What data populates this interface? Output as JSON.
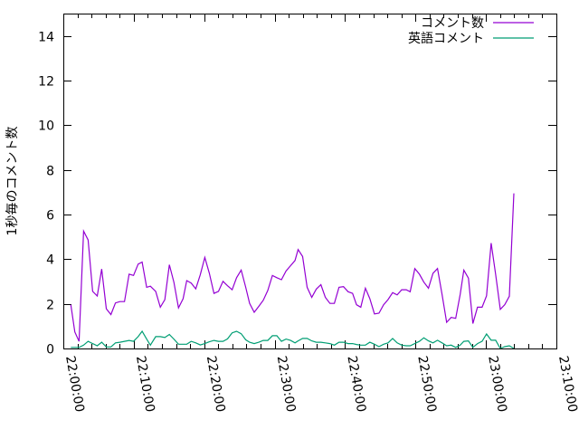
{
  "chart_data": {
    "type": "line",
    "title": "",
    "xlabel": "",
    "ylabel": "1秒毎のコメント数",
    "xlim": [
      "22:00:00",
      "23:10:00"
    ],
    "ylim": [
      0,
      15
    ],
    "yticks": [
      "0",
      "2",
      "4",
      "6",
      "8",
      "10",
      "12",
      "14"
    ],
    "xticks": [
      "22:00:00",
      "22:10:00",
      "22:20:00",
      "22:30:00",
      "22:40:00",
      "22:50:00",
      "23:00:00",
      "23:10:00"
    ],
    "grid": false,
    "legend_position": "top-right",
    "x": [
      "22:01:04",
      "22:01:38",
      "22:02:14",
      "22:02:53",
      "22:03:31",
      "22:04:10",
      "22:04:49",
      "22:05:27",
      "22:06:06",
      "22:06:45",
      "22:07:24",
      "22:08:02",
      "22:08:41",
      "22:09:20",
      "22:09:58",
      "22:10:37",
      "22:11:11",
      "22:11:50",
      "22:12:21",
      "22:13:07",
      "22:13:46",
      "22:14:25",
      "22:15:03",
      "22:15:42",
      "22:16:21",
      "22:17:00",
      "22:17:31",
      "22:18:09",
      "22:18:48",
      "22:19:27",
      "22:20:05",
      "22:20:44",
      "22:21:23",
      "22:22:02",
      "22:22:40",
      "22:23:19",
      "22:23:58",
      "22:24:36",
      "22:25:15",
      "22:25:54",
      "22:26:27",
      "22:27:06",
      "22:27:45",
      "22:28:23",
      "22:29:02",
      "22:29:41",
      "22:30:19",
      "22:30:58",
      "22:31:37",
      "22:32:16",
      "22:32:54",
      "22:33:20",
      "22:33:58",
      "22:34:37",
      "22:35:16",
      "22:35:55",
      "22:36:34",
      "22:37:12",
      "22:37:51",
      "22:38:29",
      "22:39:08",
      "22:39:47",
      "22:40:26",
      "22:41:04",
      "22:41:38",
      "22:42:14",
      "22:42:53",
      "22:43:31",
      "22:44:10",
      "22:44:49",
      "22:45:28",
      "22:46:06",
      "22:46:45",
      "22:47:24",
      "22:48:02",
      "22:48:41",
      "22:49:15",
      "22:49:54",
      "22:50:33",
      "22:51:11",
      "22:51:50",
      "22:52:29",
      "22:53:07",
      "22:53:46",
      "22:54:25",
      "22:55:04",
      "22:55:42",
      "22:56:21",
      "22:56:52",
      "22:57:31",
      "22:58:09",
      "22:58:48",
      "22:59:27",
      "23:00:05",
      "23:00:44",
      "23:01:23",
      "23:02:02",
      "23:02:40",
      "23:03:19",
      "23:03:58"
    ],
    "series": [
      {
        "name": "コメント数",
        "color": "#9400d3",
        "values": [
          1.96,
          0.74,
          0.32,
          5.26,
          4.86,
          2.56,
          2.35,
          3.56,
          1.78,
          1.52,
          2.04,
          2.1,
          2.1,
          3.33,
          3.27,
          3.78,
          3.87,
          2.74,
          2.79,
          2.56,
          1.85,
          2.19,
          3.75,
          2.97,
          1.82,
          2.23,
          3.04,
          2.93,
          2.67,
          3.31,
          4.08,
          3.37,
          2.47,
          2.56,
          3.01,
          2.81,
          2.63,
          3.17,
          3.51,
          2.74,
          2.02,
          1.62,
          1.89,
          2.16,
          2.6,
          3.27,
          3.17,
          3.08,
          3.47,
          3.71,
          3.94,
          4.43,
          4.12,
          2.74,
          2.29,
          2.66,
          2.86,
          2.29,
          2.02,
          2.02,
          2.74,
          2.77,
          2.54,
          2.47,
          1.96,
          1.85,
          2.7,
          2.23,
          1.55,
          1.58,
          1.96,
          2.19,
          2.5,
          2.4,
          2.63,
          2.63,
          2.54,
          3.58,
          3.33,
          2.97,
          2.7,
          3.37,
          3.58,
          2.43,
          1.17,
          1.39,
          1.35,
          2.43,
          3.51,
          3.15,
          1.12,
          1.85,
          1.85,
          2.36,
          4.72,
          3.31,
          1.75,
          1.96,
          2.34,
          6.95
        ]
      },
      {
        "name": "英語コメント",
        "color": "#009e73",
        "values": [
          0.05,
          0.05,
          0.05,
          0.15,
          0.32,
          0.22,
          0.12,
          0.28,
          0.07,
          0.07,
          0.25,
          0.28,
          0.32,
          0.36,
          0.32,
          0.53,
          0.77,
          0.42,
          0.15,
          0.53,
          0.53,
          0.49,
          0.63,
          0.42,
          0.19,
          0.19,
          0.19,
          0.32,
          0.25,
          0.16,
          0.22,
          0.3,
          0.36,
          0.32,
          0.32,
          0.43,
          0.7,
          0.77,
          0.66,
          0.39,
          0.28,
          0.22,
          0.28,
          0.36,
          0.36,
          0.57,
          0.57,
          0.32,
          0.42,
          0.36,
          0.25,
          0.34,
          0.45,
          0.45,
          0.34,
          0.28,
          0.28,
          0.25,
          0.22,
          0.15,
          0.28,
          0.28,
          0.22,
          0.22,
          0.18,
          0.15,
          0.15,
          0.28,
          0.19,
          0.08,
          0.19,
          0.25,
          0.45,
          0.25,
          0.15,
          0.12,
          0.12,
          0.22,
          0.32,
          0.48,
          0.34,
          0.25,
          0.37,
          0.25,
          0.12,
          0.15,
          0.05,
          0.15,
          0.32,
          0.34,
          0.05,
          0.22,
          0.32,
          0.65,
          0.37,
          0.37,
          0,
          0.08,
          0.12,
          0
        ]
      }
    ]
  }
}
